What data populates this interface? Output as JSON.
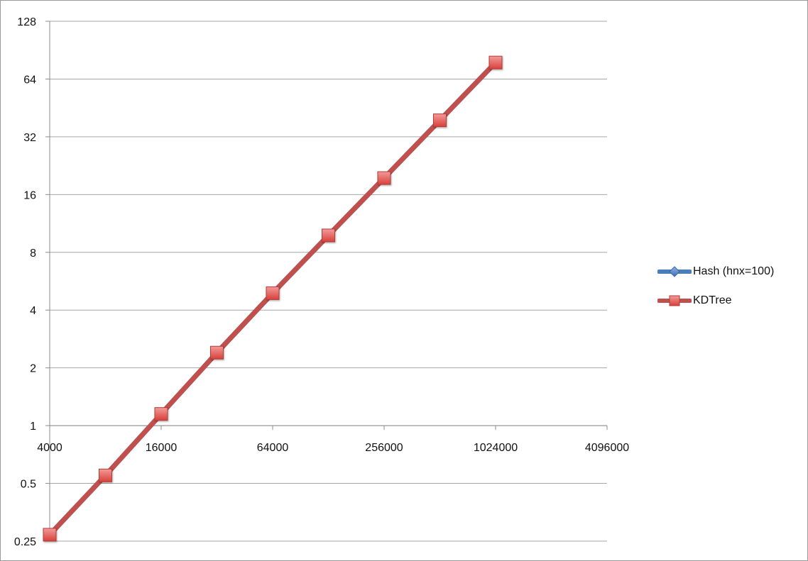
{
  "chart_data": {
    "type": "line",
    "x_scale": "log2",
    "y_scale": "log2",
    "x_ticks": [
      "4000",
      "16000",
      "64000",
      "256000",
      "1024000",
      "4096000"
    ],
    "y_ticks": [
      "0.25",
      "0.5",
      "1",
      "2",
      "4",
      "8",
      "16",
      "32",
      "64",
      "128"
    ],
    "xlim": [
      4000,
      4096000
    ],
    "ylim": [
      0.25,
      128
    ],
    "x_axis_crosses_at_y": 1,
    "grid": "horizontal",
    "legend_position": "right",
    "series": [
      {
        "name": "Hash (hnx=100)",
        "color": "#4a7ebb",
        "marker": "diamond",
        "x": [
          4000,
          8000,
          16000,
          32000,
          64000,
          128000,
          256000,
          512000,
          1024000
        ],
        "y": [
          0.27,
          0.55,
          1.15,
          2.4,
          4.9,
          9.8,
          19.5,
          39,
          78
        ]
      },
      {
        "name": "KDTree",
        "color": "#c0504d",
        "marker": "square",
        "x": [
          4000,
          8000,
          16000,
          32000,
          64000,
          128000,
          256000,
          512000,
          1024000
        ],
        "y": [
          0.27,
          0.55,
          1.15,
          2.4,
          4.9,
          9.8,
          19.5,
          39,
          78
        ]
      }
    ]
  }
}
